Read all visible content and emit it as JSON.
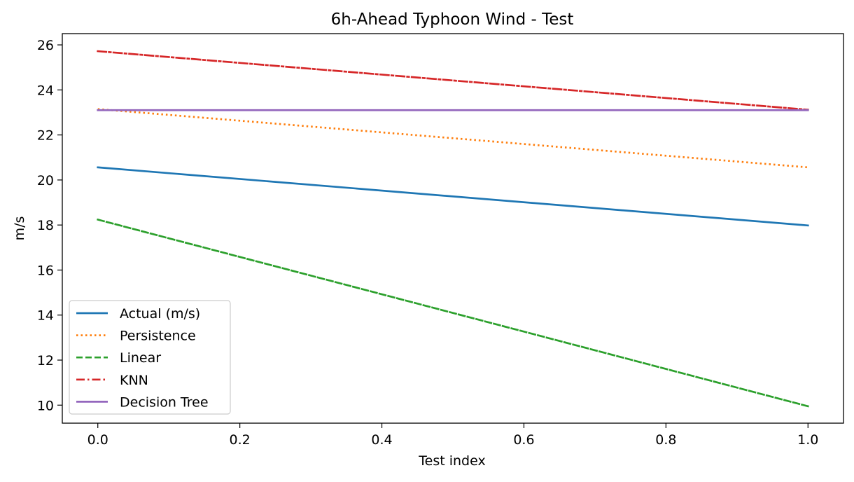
{
  "chart_data": {
    "type": "line",
    "title": "6h-Ahead Typhoon Wind - Test",
    "xlabel": "Test index",
    "ylabel": "m/s",
    "x": [
      0,
      1
    ],
    "xlim": [
      -0.05,
      1.05
    ],
    "ylim": [
      9.2,
      26.5
    ],
    "xticks": [
      0.0,
      0.2,
      0.4,
      0.6,
      0.8,
      1.0
    ],
    "xtick_labels": [
      "0.0",
      "0.2",
      "0.4",
      "0.6",
      "0.8",
      "1.0"
    ],
    "yticks": [
      10,
      12,
      14,
      16,
      18,
      20,
      22,
      24,
      26
    ],
    "ytick_labels": [
      "10",
      "12",
      "14",
      "16",
      "18",
      "20",
      "22",
      "24",
      "26"
    ],
    "grid": false,
    "legend_position": "lower-left",
    "series": [
      {
        "name": "Actual (m/s)",
        "values": [
          20.56,
          17.98
        ],
        "color": "#1f77b4",
        "style": "solid"
      },
      {
        "name": "Persistence",
        "values": [
          23.15,
          20.56
        ],
        "color": "#ff7f0e",
        "style": "dotted"
      },
      {
        "name": "Linear",
        "values": [
          18.24,
          9.95
        ],
        "color": "#2ca02c",
        "style": "dashed"
      },
      {
        "name": "KNN",
        "values": [
          25.72,
          23.12
        ],
        "color": "#d62728",
        "style": "dashdot"
      },
      {
        "name": "Decision Tree",
        "values": [
          23.1,
          23.1
        ],
        "color": "#9467bd",
        "style": "solid"
      }
    ]
  }
}
